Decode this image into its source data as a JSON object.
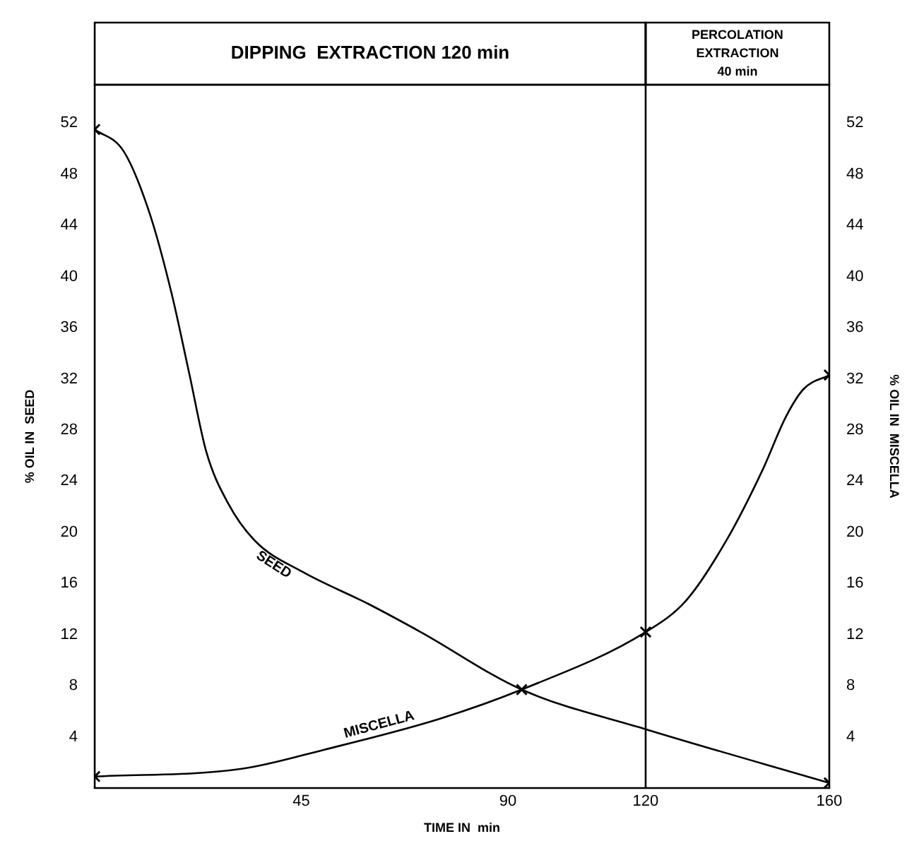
{
  "chart_data": {
    "type": "line",
    "xlabel": "TIME IN  min",
    "ylabel": "% OIL IN  SEED",
    "y2label": "% OIL IN  MISCELLA",
    "xlim": [
      0,
      160
    ],
    "xticks": [
      45,
      90,
      120,
      160
    ],
    "ylim": [
      0,
      55
    ],
    "yticks": [
      4,
      8,
      12,
      16,
      20,
      24,
      28,
      32,
      36,
      40,
      44,
      48,
      52
    ],
    "y2lim": [
      0,
      55
    ],
    "y2ticks": [
      4,
      8,
      12,
      16,
      20,
      24,
      28,
      32,
      36,
      40,
      44,
      48,
      52
    ],
    "series": [
      {
        "name": "SEED",
        "color": "#000000",
        "x": [
          0,
          6.3,
          12,
          16.8,
          20.6,
          24.3,
          29,
          35,
          45.3,
          59.6,
          71,
          93,
          120,
          160
        ],
        "values": [
          51.5,
          49.8,
          44.9,
          38.6,
          32.4,
          26.3,
          22.3,
          19.3,
          16.9,
          14.4,
          12.2,
          7.7,
          4.6,
          0.4
        ]
      },
      {
        "name": "MISCELLA",
        "color": "#000000",
        "axis": "y2",
        "x": [
          0,
          32,
          50,
          75,
          93,
          120,
          128.9,
          137.8,
          145.5,
          150.5,
          154.4,
          160
        ],
        "values": [
          0.9,
          1.5,
          3,
          5.4,
          7.7,
          12.2,
          14.7,
          19.5,
          24.9,
          29,
          31.2,
          32.3
        ]
      },
      {
        "type": "scatter",
        "color": "#000000",
        "marker": "cross",
        "x": [
          0,
          93,
          120,
          160,
          0,
          160
        ],
        "values": [
          51.5,
          7.7,
          12.2,
          0.4,
          0.9,
          32.3
        ]
      }
    ],
    "ref_lines": [
      {
        "axis": "x",
        "value": 120
      }
    ],
    "annotations": [
      "DIPPING  EXTRACTION 120 min",
      "PERCOLATION\nEXTRACTION\n40 min"
    ],
    "grid": false,
    "legend": false,
    "line_style": "solid",
    "marker": "none"
  }
}
